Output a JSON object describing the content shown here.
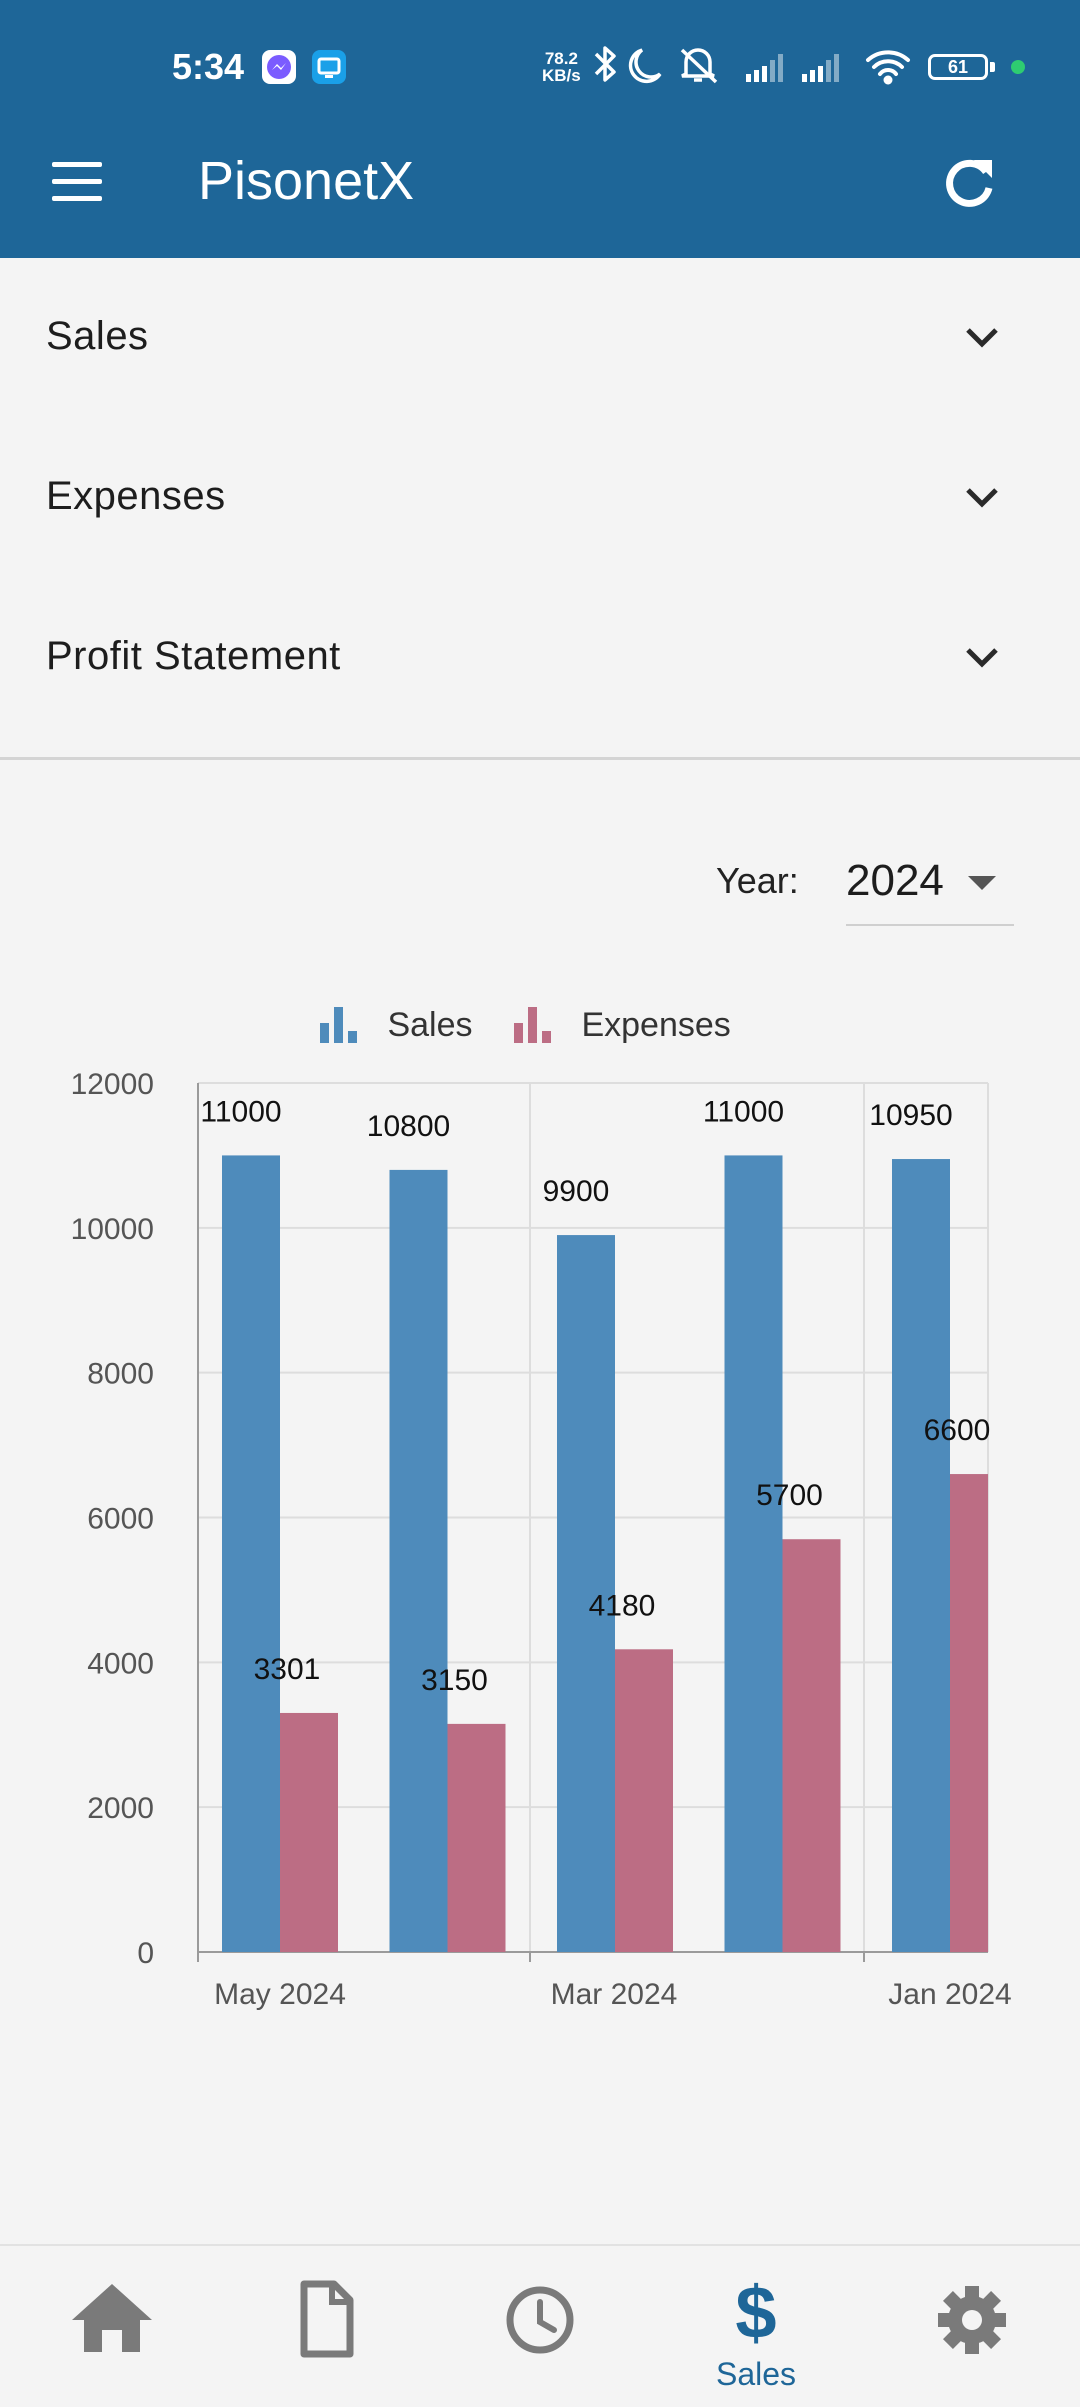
{
  "status_bar": {
    "time": "5:34",
    "net_speed_value": "78.2",
    "net_speed_unit": "KB/s",
    "battery": "61"
  },
  "app_bar": {
    "title": "PisonetX"
  },
  "accordion": [
    "Sales",
    "Expenses",
    "Profit Statement"
  ],
  "year_filter": {
    "label": "Year:",
    "value": "2024"
  },
  "legend": [
    "Sales",
    "Expenses"
  ],
  "colors": {
    "primary": "#1e6698",
    "sales": "#4e8bbb",
    "expenses": "#bc6d84",
    "background": "#f4f4f4"
  },
  "bottom_nav": {
    "items": [
      "home-icon",
      "document-icon",
      "history-icon",
      "dollar-icon",
      "gear-icon"
    ],
    "active_label": "Sales"
  },
  "chart_data": {
    "type": "bar",
    "x_tick_labels": [
      "May 2024",
      "Mar 2024",
      "Jan 2024"
    ],
    "ylim": [
      0,
      12000
    ],
    "yticks": [
      0,
      2000,
      4000,
      6000,
      8000,
      10000,
      12000
    ],
    "grid": true,
    "legend_position": "top",
    "series": [
      {
        "name": "Sales",
        "values": [
          11000,
          10800,
          9900,
          11000,
          10950
        ]
      },
      {
        "name": "Expenses",
        "values": [
          3301,
          3150,
          4180,
          5700,
          6600
        ]
      }
    ]
  }
}
